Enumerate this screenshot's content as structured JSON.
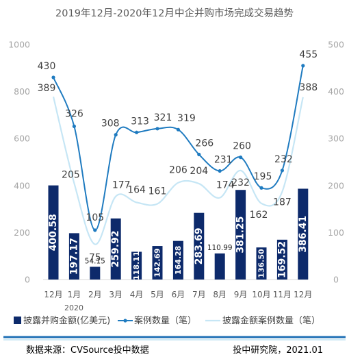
{
  "chart_data": {
    "type": "bar",
    "title": "2019年12月-2020年12月中企并购市场完成交易趋势",
    "categories": [
      "12月",
      "1月",
      "2月",
      "3月",
      "4月",
      "5月",
      "6月",
      "7月",
      "8月",
      "9月",
      "10月",
      "11月",
      "12月"
    ],
    "year_label": "2020",
    "y_left": {
      "min": 0,
      "max": 1000,
      "ticks": [
        "0",
        "200",
        "400",
        "600",
        "800",
        "1000"
      ]
    },
    "y_right": {
      "min": 0,
      "max": 500,
      "ticks": [
        "0",
        "100",
        "200",
        "300",
        "400",
        "500"
      ]
    },
    "series": [
      {
        "name": "披露并购金额(亿美元)",
        "kind": "bar",
        "axis": "left",
        "color": "#0d2a6b",
        "values": [
          400.58,
          197.17,
          54.15,
          259.92,
          118.11,
          142.69,
          164.28,
          283.69,
          110.99,
          381.25,
          136.5,
          169.52,
          386.41
        ],
        "labels": [
          "400.58",
          "197.17",
          "54.15",
          "259.92",
          "118.11",
          "142.69",
          "164.28",
          "283.69",
          "110.99",
          "381.25",
          "136.50",
          "169.52",
          "386.41"
        ]
      },
      {
        "name": "案例数量（笔）",
        "kind": "line",
        "axis": "right",
        "color": "#1f7bc0",
        "values": [
          430,
          326,
          105,
          308,
          313,
          321,
          319,
          266,
          231,
          260,
          195,
          232,
          455
        ]
      },
      {
        "name": "披露金额案例数量（笔）",
        "kind": "line",
        "axis": "right",
        "color": "#c6e6f5",
        "values": [
          389,
          205,
          75,
          177,
          164,
          161,
          206,
          204,
          174,
          232,
          162,
          187,
          388
        ]
      }
    ]
  },
  "footer": {
    "source": "数据来源：CVSource投中数据",
    "org": "投中研究院，2021.01"
  }
}
